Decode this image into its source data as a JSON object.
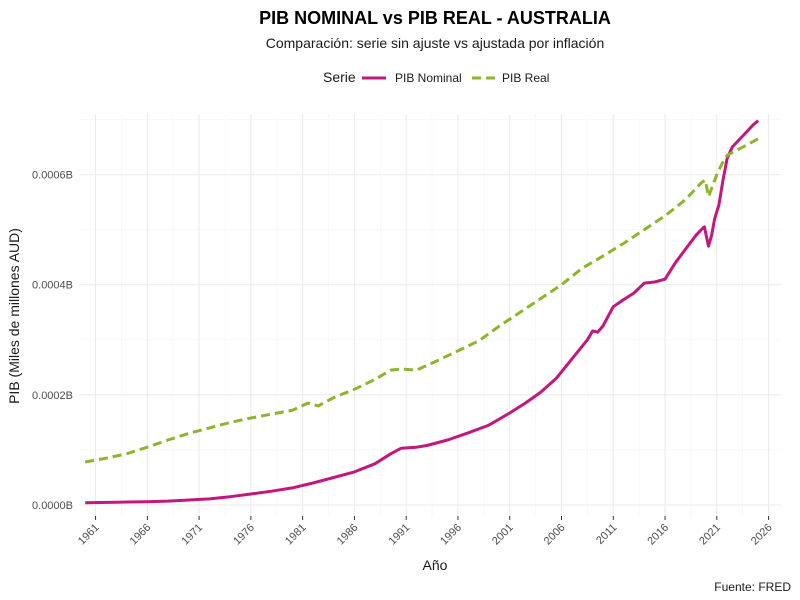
{
  "chart_data": {
    "type": "line",
    "title": "PIB NOMINAL vs PIB REAL - AUSTRALIA",
    "subtitle": "Comparación: serie sin ajuste vs ajustada por inflación",
    "xlabel": "Año",
    "ylabel": "PIB (Miles de millones AUD)",
    "caption": "Fuente: FRED",
    "legend_title": "Serie",
    "legend_position": "top",
    "grid": true,
    "xlim": [
      1959.4,
      2027.2
    ],
    "ylim": [
      -2e-05,
      0.00071
    ],
    "x_ticks": [
      1961,
      1966,
      1971,
      1976,
      1981,
      1986,
      1991,
      1996,
      2001,
      2006,
      2011,
      2016,
      2021,
      2026
    ],
    "x_tick_labels": [
      "1961",
      "1966",
      "1971",
      "1976",
      "1981",
      "1986",
      "1991",
      "1996",
      "2001",
      "2006",
      "2011",
      "2016",
      "2021",
      "2026"
    ],
    "y_ticks": [
      0,
      0.0002,
      0.0004,
      0.0006
    ],
    "y_tick_labels": [
      "0.0000B",
      "0.0002B",
      "0.0004B",
      "0.0006B"
    ],
    "series": [
      {
        "name": "PIB Nominal",
        "color": "#c2177c",
        "dash": "solid",
        "x": [
          1960,
          1963,
          1966,
          1968,
          1970,
          1972,
          1974,
          1976,
          1978,
          1980,
          1982,
          1984,
          1986,
          1988,
          1989.5,
          1990.5,
          1992,
          1993,
          1995,
          1997,
          1999,
          2001,
          2002.5,
          2004,
          2005.5,
          2007,
          2008.5,
          2009,
          2009.5,
          2010,
          2011,
          2012,
          2013,
          2014,
          2015,
          2016,
          2017,
          2018,
          2019,
          2019.5,
          2019.8,
          2020.2,
          2020.5,
          2020.8,
          2021.2,
          2021.6,
          2022,
          2022.5,
          2023,
          2023.5,
          2024,
          2024.5,
          2025
        ],
        "y": [
          4e-06,
          5e-06,
          6e-06,
          7e-06,
          9e-06,
          1.1e-05,
          1.5e-05,
          2e-05,
          2.5e-05,
          3.1e-05,
          4e-05,
          5e-05,
          6e-05,
          7.5e-05,
          9.3e-05,
          0.000103,
          0.000105,
          0.000108,
          0.000118,
          0.000131,
          0.000145,
          0.000167,
          0.000185,
          0.000205,
          0.00023,
          0.000265,
          0.0003,
          0.000316,
          0.000314,
          0.000325,
          0.00036,
          0.000373,
          0.000385,
          0.000403,
          0.000405,
          0.00041,
          0.00044,
          0.000465,
          0.00049,
          0.0005,
          0.000505,
          0.00047,
          0.00049,
          0.00052,
          0.000545,
          0.00059,
          0.00063,
          0.00065,
          0.00066,
          0.00067,
          0.00068,
          0.00069,
          0.000698
        ]
      },
      {
        "name": "PIB Real",
        "color": "#8db52b",
        "dash": "dashed",
        "x": [
          1960,
          1962,
          1964,
          1966,
          1968,
          1970,
          1972,
          1974,
          1976,
          1978,
          1980,
          1981.5,
          1982.5,
          1984,
          1986,
          1988,
          1989.5,
          1990.5,
          1992,
          1994,
          1996,
          1998,
          2000,
          2002,
          2004,
          2006,
          2008,
          2010,
          2012,
          2014,
          2016,
          2018,
          2019.5,
          2019.9,
          2020.2,
          2020.6,
          2021,
          2021.5,
          2022,
          2023,
          2024,
          2025
        ],
        "y": [
          7.8e-05,
          8.5e-05,
          9.3e-05,
          0.000105,
          0.000118,
          0.00013,
          0.00014,
          0.00015,
          0.000158,
          0.000165,
          0.000172,
          0.000185,
          0.00018,
          0.000195,
          0.00021,
          0.000228,
          0.000245,
          0.000247,
          0.000245,
          0.000262,
          0.00028,
          0.000298,
          0.000325,
          0.00035,
          0.000375,
          0.0004,
          0.00043,
          0.000452,
          0.000475,
          0.0005,
          0.000525,
          0.000555,
          0.000585,
          0.00059,
          0.00056,
          0.00058,
          0.0006,
          0.00062,
          0.000635,
          0.000645,
          0.000655,
          0.000665
        ]
      }
    ]
  }
}
